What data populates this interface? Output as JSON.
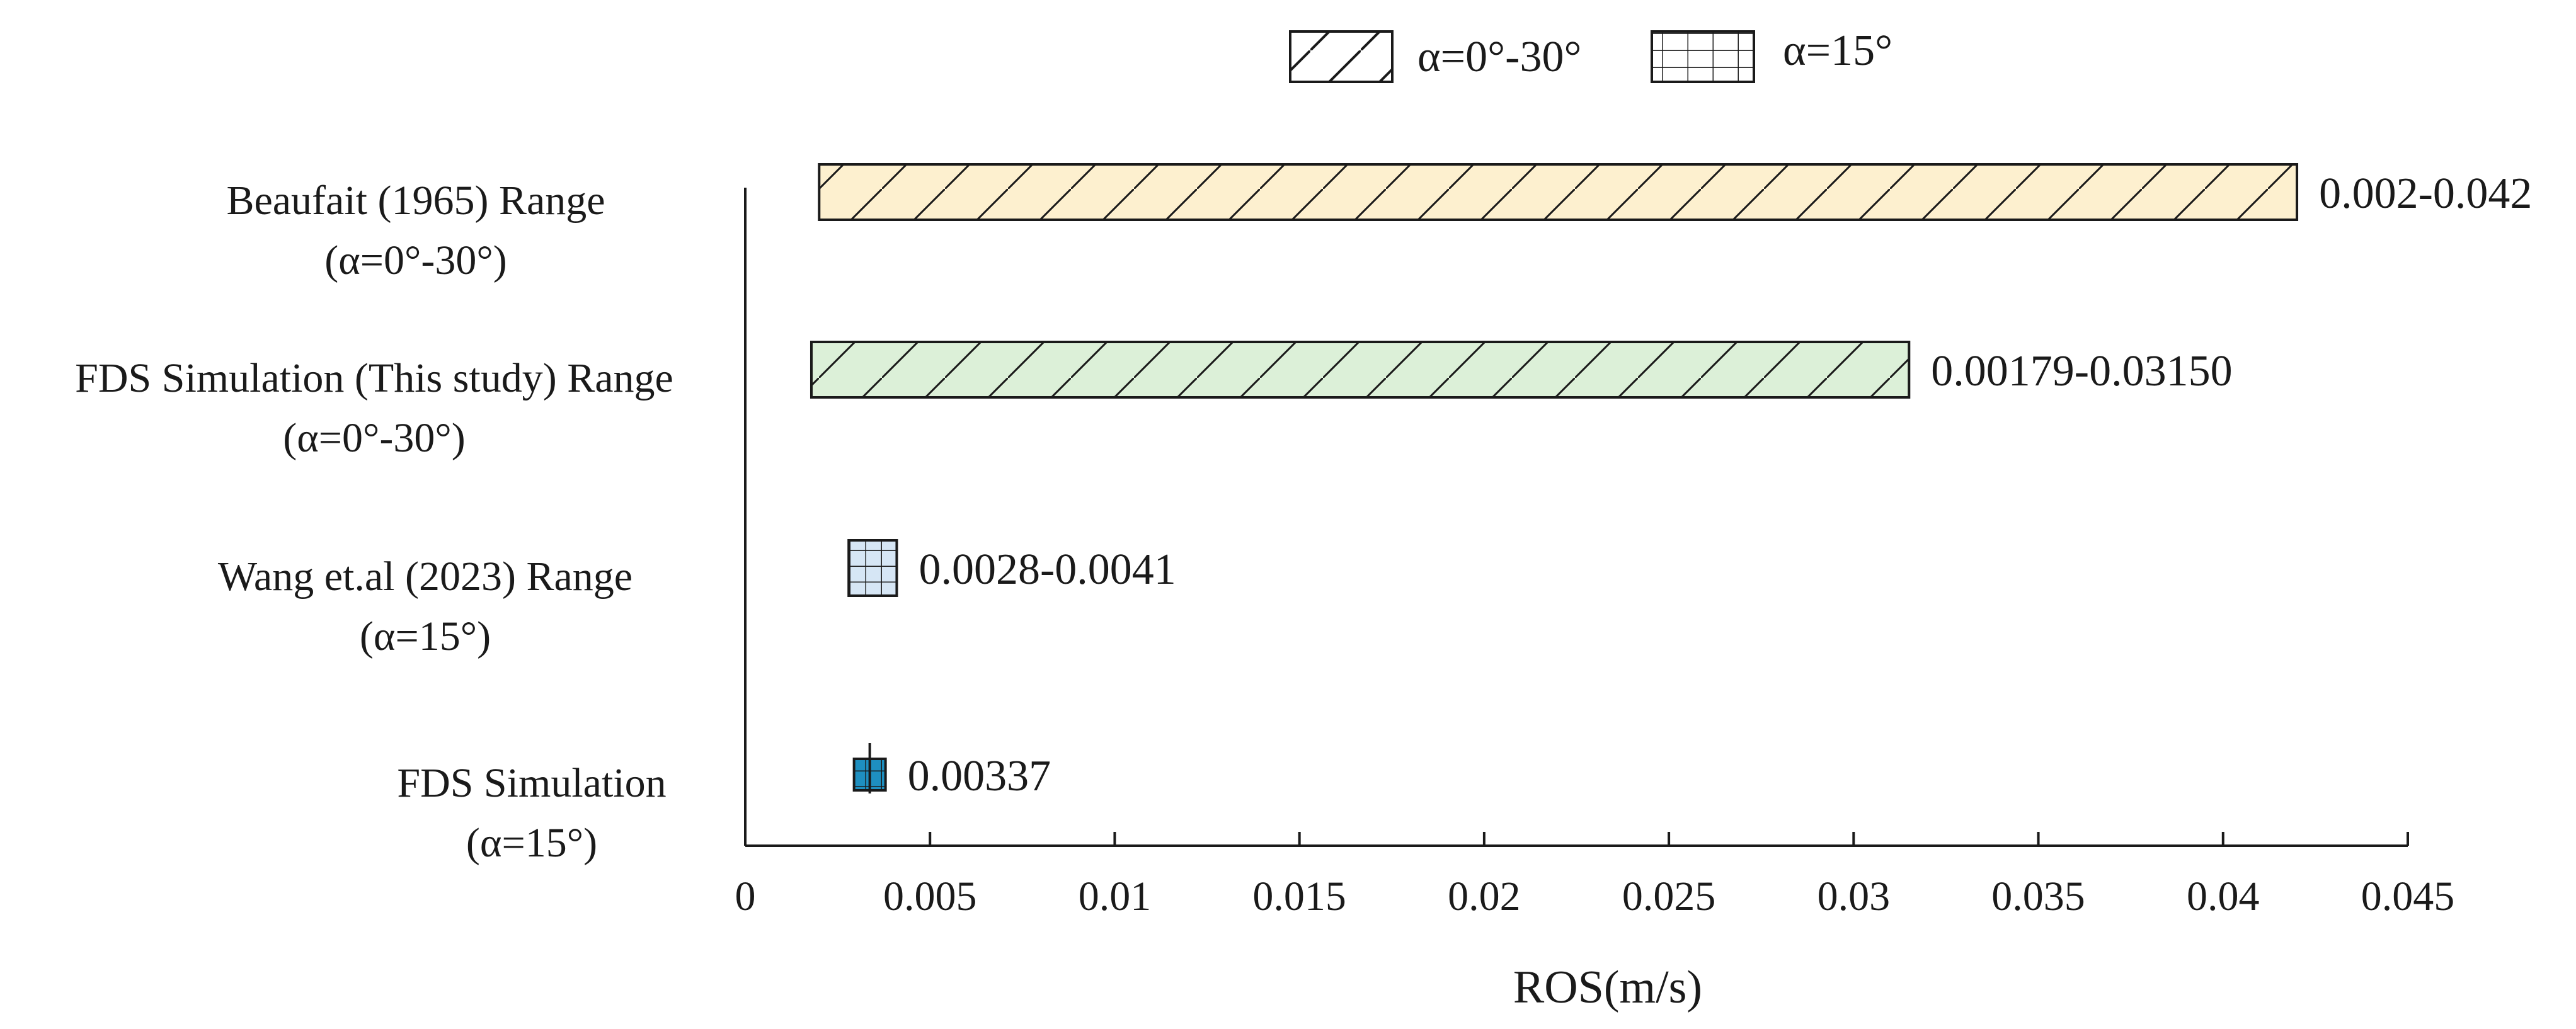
{
  "chart_data": {
    "type": "bar",
    "orientation": "horizontal",
    "xlabel": "ROS(m/s)",
    "xlim": [
      0,
      0.045
    ],
    "xticks": [
      {
        "value": 0,
        "label": "0"
      },
      {
        "value": 0.005,
        "label": "0.005"
      },
      {
        "value": 0.01,
        "label": "0.01"
      },
      {
        "value": 0.015,
        "label": "0.015"
      },
      {
        "value": 0.02,
        "label": "0.02"
      },
      {
        "value": 0.025,
        "label": "0.025"
      },
      {
        "value": 0.03,
        "label": "0.03"
      },
      {
        "value": 0.035,
        "label": "0.035"
      },
      {
        "value": 0.04,
        "label": "0.04"
      },
      {
        "value": 0.045,
        "label": "0.045"
      }
    ],
    "grid": false,
    "legend_position": "top",
    "legend": [
      {
        "label": "α=0°-30°",
        "pattern": "diagonal"
      },
      {
        "label": "α=15°",
        "pattern": "grid"
      }
    ],
    "bars": [
      {
        "line1": "Beaufait (1965) Range",
        "line2": "(α=0°-30°)",
        "start": 0.002,
        "end": 0.042,
        "label": "0.002-0.042",
        "fill": "#fdf0cf",
        "pattern": "diagonal"
      },
      {
        "line1": "FDS Simulation (This study) Range",
        "line2": "(α=0°-30°)",
        "start": 0.00179,
        "end": 0.0315,
        "label": "0.00179-0.03150",
        "fill": "#dcf0d8",
        "pattern": "diagonal"
      },
      {
        "line1": "Wang et.al (2023) Range",
        "line2": "(α=15°)",
        "start": 0.0028,
        "end": 0.0041,
        "label": "0.0028-0.0041",
        "fill": "#d6e6f5",
        "pattern": "grid"
      },
      {
        "line1": "FDS Simulation",
        "line2": "(α=15°)",
        "value": 0.00337,
        "label": "0.00337",
        "fill": "#1e8fc0",
        "pattern": "grid"
      }
    ]
  }
}
